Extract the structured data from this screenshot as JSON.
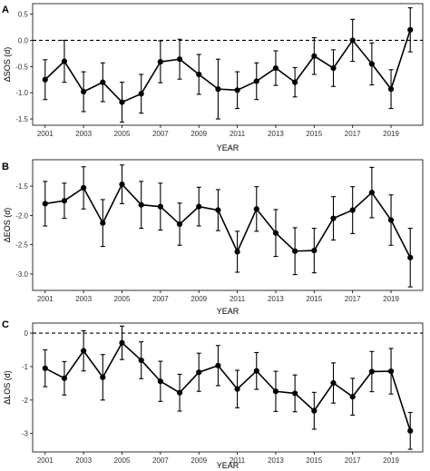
{
  "chart_data": [
    {
      "panel_label": "A",
      "type": "line",
      "xlabel": "YEAR",
      "ylabel": "ΔSOS (d)",
      "x": [
        2001,
        2002,
        2003,
        2004,
        2005,
        2006,
        2007,
        2008,
        2009,
        2010,
        2011,
        2012,
        2013,
        2014,
        2015,
        2016,
        2017,
        2018,
        2019,
        2020
      ],
      "y": [
        -0.75,
        -0.4,
        -0.98,
        -0.8,
        -1.18,
        -1.02,
        -0.41,
        -0.36,
        -0.65,
        -0.93,
        -0.95,
        -0.78,
        -0.53,
        -0.8,
        -0.3,
        -0.53,
        0.0,
        -0.45,
        -0.93,
        0.2
      ],
      "error": [
        0.38,
        0.4,
        0.38,
        0.37,
        0.38,
        0.37,
        0.4,
        0.38,
        0.38,
        0.57,
        0.35,
        0.35,
        0.33,
        0.28,
        0.35,
        0.35,
        0.4,
        0.4,
        0.37,
        0.42
      ],
      "ylim": [
        -1.62,
        0.7
      ],
      "yticks": [
        -1.5,
        -1.0,
        -0.5,
        0.0,
        0.5
      ],
      "ytick_labels": [
        "-1.5",
        "-1.0",
        "-0.5",
        "0.0",
        "0.5"
      ],
      "xticks": [
        2001,
        2003,
        2005,
        2007,
        2009,
        2011,
        2013,
        2015,
        2017,
        2019
      ],
      "xtick_labels": [
        "2001",
        "2003",
        "2005",
        "2007",
        "2009",
        "2011",
        "2013",
        "2015",
        "2017",
        "2019"
      ],
      "reference_line": 0,
      "grid": false
    },
    {
      "panel_label": "B",
      "type": "line",
      "xlabel": "YEAR",
      "ylabel": "ΔEOS (d)",
      "x": [
        2001,
        2002,
        2003,
        2004,
        2005,
        2006,
        2007,
        2008,
        2009,
        2010,
        2011,
        2012,
        2013,
        2014,
        2015,
        2016,
        2017,
        2018,
        2019,
        2020
      ],
      "y": [
        -1.8,
        -1.75,
        -1.53,
        -2.13,
        -1.47,
        -1.82,
        -1.85,
        -2.15,
        -1.85,
        -1.91,
        -2.62,
        -1.89,
        -2.3,
        -2.61,
        -2.6,
        -2.05,
        -1.91,
        -1.61,
        -2.08,
        -2.72
      ],
      "error": [
        0.38,
        0.3,
        0.36,
        0.4,
        0.33,
        0.4,
        0.4,
        0.36,
        0.33,
        0.35,
        0.35,
        0.38,
        0.4,
        0.4,
        0.38,
        0.37,
        0.4,
        0.43,
        0.43,
        0.5
      ],
      "ylim": [
        -3.28,
        -1.05
      ],
      "yticks": [
        -3.0,
        -2.5,
        -2.0,
        -1.5
      ],
      "ytick_labels": [
        "-3.0",
        "-2.5",
        "-2.0",
        "-1.5"
      ],
      "xticks": [
        2001,
        2003,
        2005,
        2007,
        2009,
        2011,
        2013,
        2015,
        2017,
        2019
      ],
      "xtick_labels": [
        "2001",
        "2003",
        "2005",
        "2007",
        "2009",
        "2011",
        "2013",
        "2015",
        "2017",
        "2019"
      ],
      "grid": false
    },
    {
      "panel_label": "C",
      "type": "line",
      "xlabel": "YEAR",
      "ylabel": "ΔLOS (d)",
      "x": [
        2001,
        2002,
        2003,
        2004,
        2005,
        2006,
        2007,
        2008,
        2009,
        2010,
        2011,
        2012,
        2013,
        2014,
        2015,
        2016,
        2017,
        2018,
        2019,
        2020
      ],
      "y": [
        -1.05,
        -1.35,
        -0.53,
        -1.32,
        -0.29,
        -0.81,
        -1.44,
        -1.78,
        -1.17,
        -0.97,
        -1.67,
        -1.13,
        -1.74,
        -1.8,
        -2.32,
        -1.49,
        -1.9,
        -1.15,
        -1.14,
        -2.92
      ],
      "error": [
        0.55,
        0.5,
        0.6,
        0.68,
        0.5,
        0.55,
        0.6,
        0.55,
        0.57,
        0.6,
        0.56,
        0.55,
        0.6,
        0.55,
        0.55,
        0.6,
        0.55,
        0.6,
        0.68,
        0.55
      ],
      "ylim": [
        -3.55,
        0.3
      ],
      "yticks": [
        -3,
        -2,
        -1,
        0
      ],
      "ytick_labels": [
        "-3",
        "-2",
        "-1",
        "0"
      ],
      "xticks": [
        2001,
        2003,
        2005,
        2007,
        2009,
        2011,
        2013,
        2015,
        2017,
        2019
      ],
      "xtick_labels": [
        "2001",
        "2003",
        "2005",
        "2007",
        "2009",
        "2011",
        "2013",
        "2015",
        "2017",
        "2019"
      ],
      "reference_line": 0,
      "grid": false
    }
  ]
}
